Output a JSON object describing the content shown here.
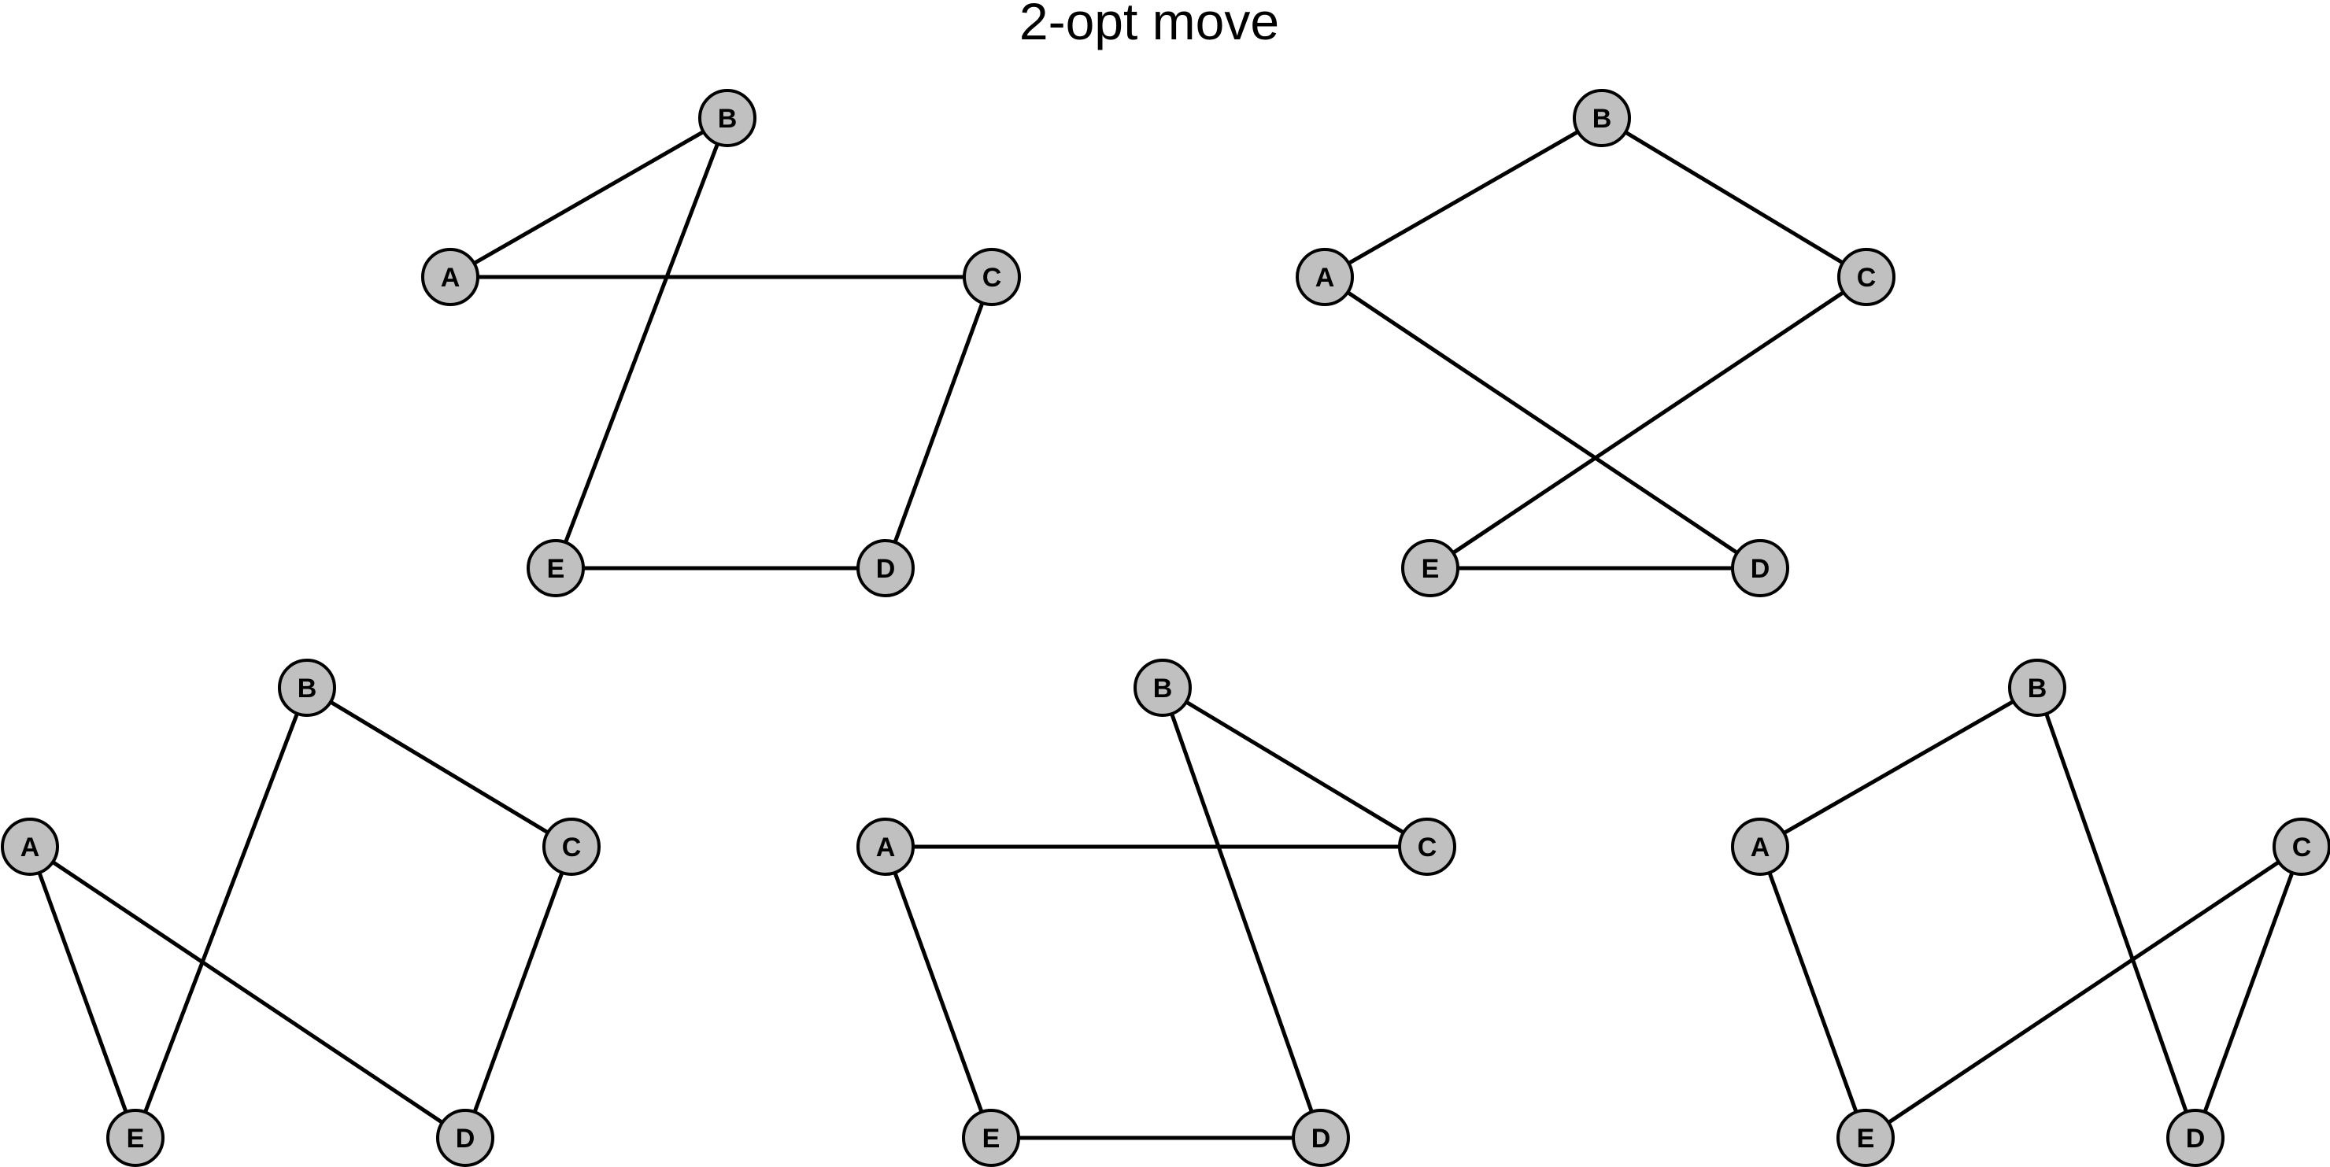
{
  "title": "2-opt move",
  "colors": {
    "node_fill": "#c0c0c0",
    "stroke": "#000000",
    "background": "#ffffff"
  },
  "graphs": [
    {
      "nodes": [
        "A",
        "B",
        "C",
        "D",
        "E"
      ],
      "edges": [
        [
          "A",
          "B"
        ],
        [
          "A",
          "C"
        ],
        [
          "B",
          "E"
        ],
        [
          "C",
          "D"
        ],
        [
          "E",
          "D"
        ]
      ]
    },
    {
      "nodes": [
        "A",
        "B",
        "C",
        "D",
        "E"
      ],
      "edges": [
        [
          "A",
          "B"
        ],
        [
          "B",
          "C"
        ],
        [
          "A",
          "D"
        ],
        [
          "C",
          "E"
        ],
        [
          "E",
          "D"
        ]
      ]
    },
    {
      "nodes": [
        "A",
        "B",
        "C",
        "D",
        "E"
      ],
      "edges": [
        [
          "B",
          "C"
        ],
        [
          "B",
          "E"
        ],
        [
          "A",
          "E"
        ],
        [
          "A",
          "D"
        ],
        [
          "C",
          "D"
        ]
      ]
    },
    {
      "nodes": [
        "A",
        "B",
        "C",
        "D",
        "E"
      ],
      "edges": [
        [
          "A",
          "C"
        ],
        [
          "B",
          "C"
        ],
        [
          "B",
          "D"
        ],
        [
          "A",
          "E"
        ],
        [
          "E",
          "D"
        ]
      ]
    },
    {
      "nodes": [
        "A",
        "B",
        "C",
        "D",
        "E"
      ],
      "edges": [
        [
          "A",
          "B"
        ],
        [
          "A",
          "E"
        ],
        [
          "B",
          "D"
        ],
        [
          "C",
          "E"
        ],
        [
          "C",
          "D"
        ]
      ]
    }
  ]
}
